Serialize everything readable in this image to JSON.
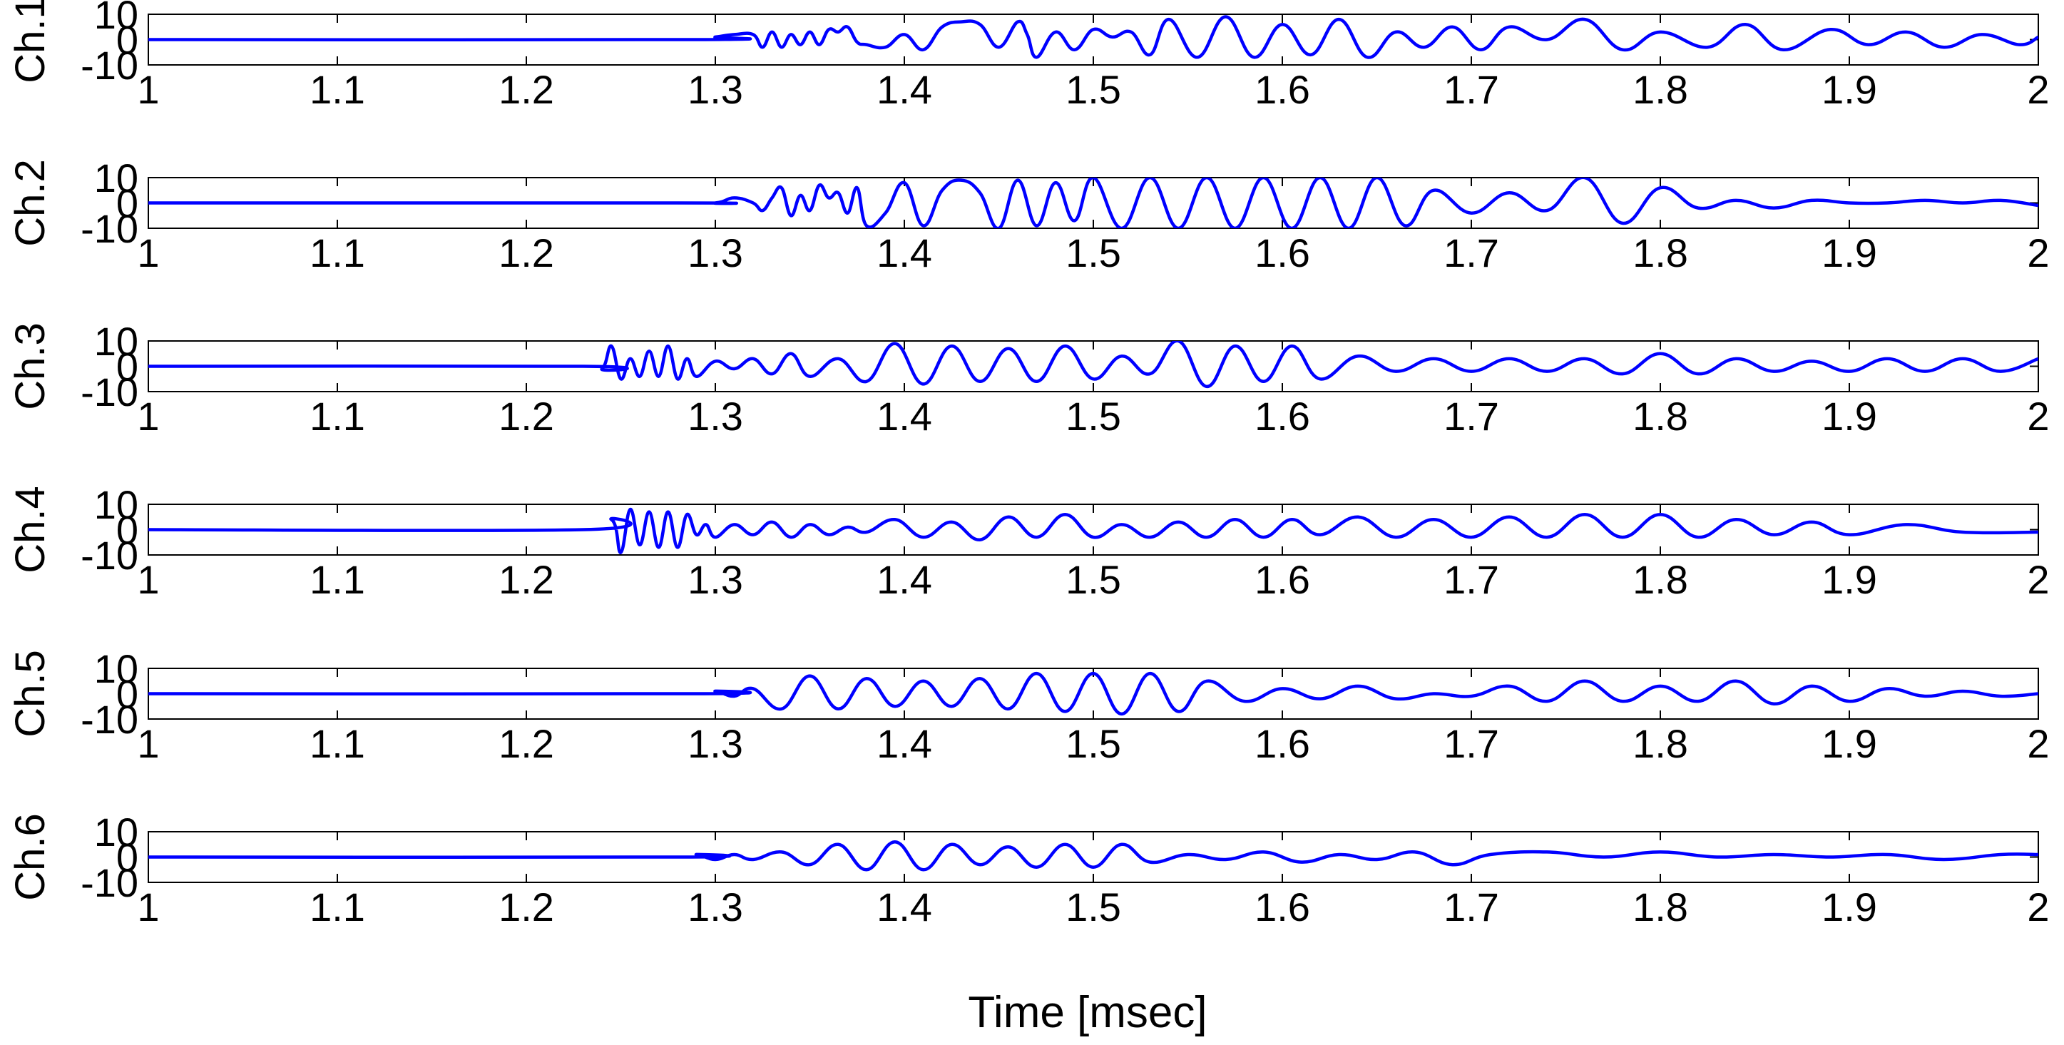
{
  "figure": {
    "xlabel": "Time [msec]"
  },
  "style": {
    "line_color": "#0000ff",
    "axis_color": "#000000",
    "background": "#ffffff"
  },
  "chart_data": [
    {
      "type": "line",
      "ylabel": "Ch.1",
      "xlim": [
        1,
        2
      ],
      "ylim": [
        -10,
        10
      ],
      "xticks": [
        "1",
        "1.1",
        "1.2",
        "1.3",
        "1.4",
        "1.5",
        "1.6",
        "1.7",
        "1.8",
        "1.9",
        "2"
      ],
      "yticks": [
        "-10",
        "0",
        "10"
      ],
      "grid": false,
      "x": [
        1.0,
        1.29,
        1.3,
        1.31,
        1.32,
        1.325,
        1.33,
        1.335,
        1.34,
        1.345,
        1.35,
        1.355,
        1.36,
        1.365,
        1.37,
        1.375,
        1.38,
        1.39,
        1.4,
        1.41,
        1.42,
        1.43,
        1.44,
        1.45,
        1.46,
        1.465,
        1.47,
        1.48,
        1.49,
        1.5,
        1.51,
        1.52,
        1.53,
        1.54,
        1.555,
        1.57,
        1.585,
        1.6,
        1.615,
        1.63,
        1.645,
        1.66,
        1.675,
        1.69,
        1.705,
        1.72,
        1.74,
        1.76,
        1.78,
        1.8,
        1.825,
        1.845,
        1.865,
        1.89,
        1.91,
        1.93,
        1.95,
        1.97,
        1.99,
        2.0
      ],
      "y": [
        0,
        0,
        1,
        2,
        2,
        -3,
        3,
        -3,
        2,
        -2,
        3,
        -2,
        4,
        3,
        5,
        -1,
        -2,
        -3,
        2,
        -4,
        5,
        7,
        6,
        -3,
        7,
        2,
        -7,
        3,
        -4,
        4,
        1,
        3,
        -6,
        8,
        -7,
        9,
        -7,
        6,
        -6,
        8,
        -7,
        3,
        -3,
        5,
        -4,
        5,
        0,
        8,
        -4,
        3,
        -3,
        6,
        -4,
        4,
        -2,
        3,
        -3,
        2,
        -2,
        1
      ],
      "tension": 0.4
    },
    {
      "type": "line",
      "ylabel": "Ch.2",
      "xlim": [
        1,
        2
      ],
      "ylim": [
        -10,
        10
      ],
      "xticks": [
        "1",
        "1.1",
        "1.2",
        "1.3",
        "1.4",
        "1.5",
        "1.6",
        "1.7",
        "1.8",
        "1.9",
        "2"
      ],
      "yticks": [
        "-10",
        "0",
        "10"
      ],
      "grid": false,
      "x": [
        1.0,
        1.28,
        1.3,
        1.31,
        1.32,
        1.325,
        1.33,
        1.335,
        1.34,
        1.345,
        1.35,
        1.355,
        1.36,
        1.365,
        1.37,
        1.375,
        1.38,
        1.39,
        1.4,
        1.41,
        1.42,
        1.43,
        1.44,
        1.45,
        1.46,
        1.47,
        1.48,
        1.49,
        1.5,
        1.515,
        1.53,
        1.545,
        1.56,
        1.575,
        1.59,
        1.605,
        1.62,
        1.635,
        1.65,
        1.665,
        1.68,
        1.7,
        1.72,
        1.74,
        1.76,
        1.78,
        1.8,
        1.82,
        1.84,
        1.86,
        1.88,
        1.9,
        1.92,
        1.94,
        1.96,
        1.98,
        2.0
      ],
      "y": [
        0,
        0,
        0,
        2,
        0,
        -3,
        2,
        6,
        -5,
        3,
        -3,
        7,
        2,
        4,
        -4,
        6,
        -9,
        -4,
        8,
        -9,
        5,
        9,
        4,
        -10,
        9,
        -9,
        8,
        -7,
        10,
        -10,
        10,
        -10,
        10,
        -10,
        10,
        -10,
        10,
        -10,
        10,
        -9,
        5,
        -4,
        4,
        -3,
        10,
        -8,
        6,
        -2,
        1,
        -2,
        1,
        0,
        0,
        1,
        0,
        1,
        -1
      ],
      "tension": 0.4
    },
    {
      "type": "line",
      "ylabel": "Ch.3",
      "xlim": [
        1,
        2
      ],
      "ylim": [
        -10,
        10
      ],
      "xticks": [
        "1",
        "1.1",
        "1.2",
        "1.3",
        "1.4",
        "1.5",
        "1.6",
        "1.7",
        "1.8",
        "1.9",
        "2"
      ],
      "yticks": [
        "-10",
        "0",
        "10"
      ],
      "grid": false,
      "x": [
        1.0,
        1.23,
        1.24,
        1.245,
        1.25,
        1.255,
        1.26,
        1.265,
        1.27,
        1.275,
        1.28,
        1.285,
        1.29,
        1.3,
        1.31,
        1.32,
        1.33,
        1.34,
        1.35,
        1.365,
        1.38,
        1.395,
        1.41,
        1.425,
        1.44,
        1.455,
        1.47,
        1.485,
        1.5,
        1.515,
        1.53,
        1.545,
        1.56,
        1.575,
        1.59,
        1.605,
        1.62,
        1.64,
        1.66,
        1.68,
        1.7,
        1.72,
        1.74,
        1.76,
        1.78,
        1.8,
        1.82,
        1.84,
        1.86,
        1.88,
        1.9,
        1.92,
        1.94,
        1.96,
        1.98,
        2.0
      ],
      "y": [
        0,
        0,
        -1,
        8,
        -5,
        3,
        -4,
        6,
        -4,
        8,
        -5,
        3,
        -4,
        2,
        -1,
        3,
        -3,
        5,
        -4,
        3,
        -6,
        9,
        -7,
        8,
        -6,
        7,
        -6,
        8,
        -5,
        4,
        -3,
        10,
        -8,
        8,
        -6,
        8,
        -5,
        4,
        -2,
        3,
        -2,
        3,
        -2,
        3,
        -3,
        5,
        -3,
        3,
        -2,
        2,
        -2,
        3,
        -2,
        3,
        -2,
        3
      ],
      "tension": 0.4
    },
    {
      "type": "line",
      "ylabel": "Ch.4",
      "xlim": [
        1,
        2
      ],
      "ylim": [
        -10,
        10
      ],
      "xticks": [
        "1",
        "1.1",
        "1.2",
        "1.3",
        "1.4",
        "1.5",
        "1.6",
        "1.7",
        "1.8",
        "1.9",
        "2"
      ],
      "yticks": [
        "-10",
        "0",
        "10"
      ],
      "grid": false,
      "x": [
        1.0,
        1.23,
        1.245,
        1.25,
        1.255,
        1.26,
        1.265,
        1.27,
        1.275,
        1.28,
        1.285,
        1.29,
        1.295,
        1.3,
        1.31,
        1.32,
        1.33,
        1.34,
        1.35,
        1.36,
        1.37,
        1.38,
        1.395,
        1.41,
        1.425,
        1.44,
        1.455,
        1.47,
        1.485,
        1.5,
        1.515,
        1.53,
        1.545,
        1.56,
        1.575,
        1.59,
        1.605,
        1.62,
        1.64,
        1.66,
        1.68,
        1.7,
        1.72,
        1.74,
        1.76,
        1.78,
        1.8,
        1.82,
        1.84,
        1.86,
        1.88,
        1.9,
        1.93,
        1.96,
        2.0
      ],
      "y": [
        0,
        0,
        4,
        -9,
        8,
        -6,
        7,
        -7,
        7,
        -7,
        6,
        -2,
        2,
        -3,
        2,
        -2,
        3,
        -3,
        2,
        -2,
        1,
        -1,
        4,
        -3,
        3,
        -4,
        5,
        -3,
        6,
        -3,
        2,
        -3,
        3,
        -3,
        4,
        -3,
        4,
        -2,
        5,
        -3,
        4,
        -3,
        5,
        -3,
        6,
        -3,
        6,
        -3,
        4,
        -2,
        3,
        -2,
        2,
        -1,
        -1
      ],
      "tension": 0.4
    },
    {
      "type": "line",
      "ylabel": "Ch.5",
      "xlim": [
        1,
        2
      ],
      "ylim": [
        -10,
        10
      ],
      "xticks": [
        "1",
        "1.1",
        "1.2",
        "1.3",
        "1.4",
        "1.5",
        "1.6",
        "1.7",
        "1.8",
        "1.9",
        "2"
      ],
      "yticks": [
        "-10",
        "0",
        "10"
      ],
      "grid": false,
      "x": [
        1.0,
        1.29,
        1.3,
        1.31,
        1.32,
        1.335,
        1.35,
        1.365,
        1.38,
        1.395,
        1.41,
        1.425,
        1.44,
        1.455,
        1.47,
        1.485,
        1.5,
        1.515,
        1.53,
        1.545,
        1.56,
        1.58,
        1.6,
        1.62,
        1.64,
        1.66,
        1.68,
        1.7,
        1.72,
        1.74,
        1.76,
        1.78,
        1.8,
        1.82,
        1.84,
        1.86,
        1.88,
        1.9,
        1.92,
        1.94,
        1.96,
        1.98,
        2.0
      ],
      "y": [
        0,
        0,
        1,
        -1,
        2,
        -6,
        7,
        -6,
        6,
        -5,
        5,
        -5,
        6,
        -6,
        8,
        -7,
        8,
        -8,
        8,
        -7,
        5,
        -3,
        2,
        -2,
        3,
        -2,
        0,
        -1,
        3,
        -3,
        5,
        -3,
        3,
        -3,
        5,
        -4,
        3,
        -3,
        2,
        -1,
        1,
        -1,
        0
      ],
      "tension": 0.4
    },
    {
      "type": "line",
      "ylabel": "Ch.6",
      "xlim": [
        1,
        2
      ],
      "ylim": [
        -10,
        10
      ],
      "xticks": [
        "1",
        "1.1",
        "1.2",
        "1.3",
        "1.4",
        "1.5",
        "1.6",
        "1.7",
        "1.8",
        "1.9",
        "2"
      ],
      "yticks": [
        "-10",
        "0",
        "10"
      ],
      "grid": false,
      "x": [
        1.0,
        1.28,
        1.29,
        1.3,
        1.31,
        1.32,
        1.335,
        1.35,
        1.365,
        1.38,
        1.395,
        1.41,
        1.425,
        1.44,
        1.455,
        1.47,
        1.485,
        1.5,
        1.515,
        1.53,
        1.55,
        1.57,
        1.59,
        1.61,
        1.63,
        1.65,
        1.67,
        1.69,
        1.71,
        1.74,
        1.77,
        1.8,
        1.83,
        1.86,
        1.89,
        1.92,
        1.95,
        1.98,
        2.0
      ],
      "y": [
        0,
        0,
        1,
        -1,
        1,
        -1,
        2,
        -3,
        5,
        -5,
        6,
        -5,
        5,
        -3,
        4,
        -4,
        5,
        -4,
        5,
        -2,
        1,
        -1,
        2,
        -2,
        1,
        -1,
        2,
        -3,
        1,
        2,
        0,
        2,
        0,
        1,
        0,
        1,
        -1,
        1,
        1
      ],
      "tension": 0.4
    }
  ]
}
